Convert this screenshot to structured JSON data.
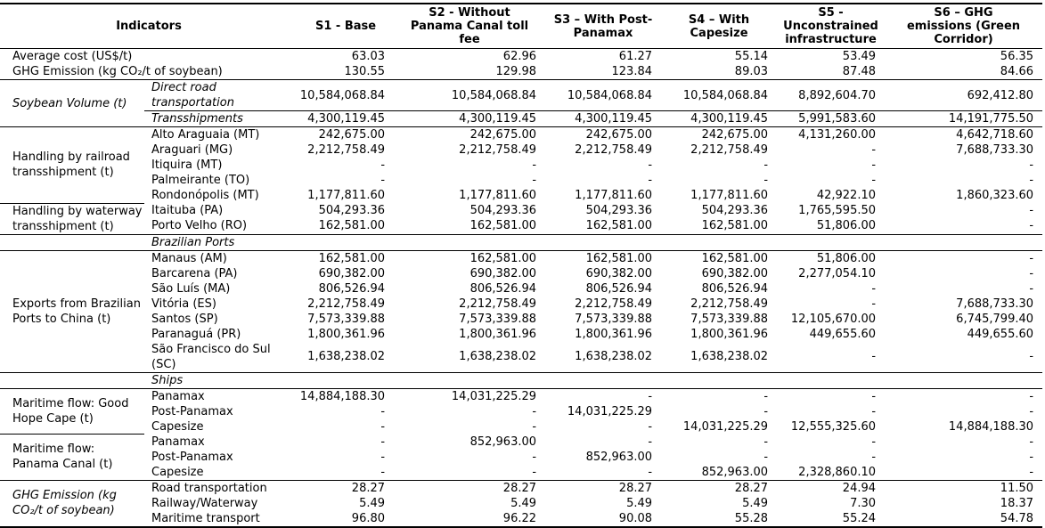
{
  "header": {
    "indicators_label": "Indicators",
    "scenarios": [
      "S1 - Base",
      "S2 - Without Panama Canal toll fee",
      "S3 – With Post-Panamax",
      "S4 – With Capesize",
      "S5 - Unconstrained infrastructure",
      "S6 – GHG emissions (Green Corridor)"
    ]
  },
  "sections": [
    {
      "rows": [
        {
          "label": "Average cost (US$/t)",
          "values": [
            "63.03",
            "62.96",
            "61.27",
            "55.14",
            "53.49",
            "56.35"
          ]
        },
        {
          "label": "GHG Emission (kg CO₂/t of soybean)",
          "values": [
            "130.55",
            "129.98",
            "123.84",
            "89.03",
            "87.48",
            "84.66"
          ]
        }
      ]
    },
    {
      "group_label": "Soybean Volume (t)",
      "rows": [
        {
          "label": "Direct road transportation",
          "values": [
            "10,584,068.84",
            "10,584,068.84",
            "10,584,068.84",
            "10,584,068.84",
            "8,892,604.70",
            "692,412.80"
          ]
        },
        {
          "label": "Transshipments",
          "values": [
            "4,300,119.45",
            "4,300,119.45",
            "4,300,119.45",
            "4,300,119.45",
            "5,991,583.60",
            "14,191,775.50"
          ]
        }
      ]
    },
    {
      "group_label": "Handling by railroad transshipment (t)",
      "rows": [
        {
          "label": "Alto Araguaia (MT)",
          "values": [
            "242,675.00",
            "242,675.00",
            "242,675.00",
            "242,675.00",
            "4,131,260.00",
            "4,642,718.60"
          ]
        },
        {
          "label": "Araguari (MG)",
          "values": [
            "2,212,758.49",
            "2,212,758.49",
            "2,212,758.49",
            "2,212,758.49",
            "-",
            "7,688,733.30"
          ]
        },
        {
          "label": "Itiquira (MT)",
          "values": [
            "-",
            "-",
            "-",
            "-",
            "-",
            "-"
          ]
        },
        {
          "label": "Palmeirante (TO)",
          "values": [
            "-",
            "-",
            "-",
            "-",
            "-",
            "-"
          ]
        },
        {
          "label": "Rondonópolis (MT)",
          "values": [
            "1,177,811.60",
            "1,177,811.60",
            "1,177,811.60",
            "1,177,811.60",
            "42,922.10",
            "1,860,323.60"
          ]
        }
      ]
    },
    {
      "group_label": "Handling by waterway transshipment (t)",
      "rows": [
        {
          "label": "Itaituba (PA)",
          "values": [
            "504,293.36",
            "504,293.36",
            "504,293.36",
            "504,293.36",
            "1,765,595.50",
            "-"
          ]
        },
        {
          "label": "Porto Velho (RO)",
          "values": [
            "162,581.00",
            "162,581.00",
            "162,581.00",
            "162,581.00",
            "51,806.00",
            "-"
          ]
        }
      ]
    },
    {
      "subheader": "Brazilian Ports"
    },
    {
      "group_label": "Exports from Brazilian Ports to China (t)",
      "rows": [
        {
          "label": "Manaus (AM)",
          "values": [
            "162,581.00",
            "162,581.00",
            "162,581.00",
            "162,581.00",
            "51,806.00",
            "-"
          ]
        },
        {
          "label": "Barcarena (PA)",
          "values": [
            "690,382.00",
            "690,382.00",
            "690,382.00",
            "690,382.00",
            "2,277,054.10",
            "-"
          ]
        },
        {
          "label": "São Luís (MA)",
          "values": [
            "806,526.94",
            "806,526.94",
            "806,526.94",
            "806,526.94",
            "-",
            "-"
          ]
        },
        {
          "label": "Vitória (ES)",
          "values": [
            "2,212,758.49",
            "2,212,758.49",
            "2,212,758.49",
            "2,212,758.49",
            "-",
            "7,688,733.30"
          ]
        },
        {
          "label": "Santos (SP)",
          "values": [
            "7,573,339.88",
            "7,573,339.88",
            "7,573,339.88",
            "7,573,339.88",
            "12,105,670.00",
            "6,745,799.40"
          ]
        },
        {
          "label": "Paranaguá (PR)",
          "values": [
            "1,800,361.96",
            "1,800,361.96",
            "1,800,361.96",
            "1,800,361.96",
            "449,655.60",
            "449,655.60"
          ]
        },
        {
          "label": "São Francisco do Sul (SC)",
          "values": [
            "1,638,238.02",
            "1,638,238.02",
            "1,638,238.02",
            "1,638,238.02",
            "-",
            "-"
          ]
        }
      ]
    },
    {
      "subheader": "Ships"
    },
    {
      "group_label": "Maritime flow: Good Hope Cape (t)",
      "rows": [
        {
          "label": "Panamax",
          "values": [
            "14,884,188.30",
            "14,031,225.29",
            "-",
            "-",
            "-",
            "-"
          ]
        },
        {
          "label": "Post-Panamax",
          "values": [
            "-",
            "-",
            "14,031,225.29",
            "-",
            "-",
            "-"
          ]
        },
        {
          "label": "Capesize",
          "values": [
            "-",
            "-",
            "-",
            "14,031,225.29",
            "12,555,325.60",
            "14,884,188.30"
          ]
        }
      ]
    },
    {
      "group_label": "Maritime flow: Panama Canal (t)",
      "rows": [
        {
          "label": "Panamax",
          "values": [
            "-",
            "852,963.00",
            "-",
            "-",
            "-",
            "-"
          ]
        },
        {
          "label": "Post-Panamax",
          "values": [
            "-",
            "-",
            "852,963.00",
            "-",
            "-",
            "-"
          ]
        },
        {
          "label": "Capesize",
          "values": [
            "-",
            "-",
            "-",
            "852,963.00",
            "2,328,860.10",
            "-"
          ]
        }
      ]
    },
    {
      "group_label": "GHG Emission (kg CO₂/t of soybean)",
      "rows": [
        {
          "label": "Road transportation",
          "values": [
            "28.27",
            "28.27",
            "28.27",
            "28.27",
            "24.94",
            "11.50"
          ]
        },
        {
          "label": "Railway/Waterway",
          "values": [
            "5.49",
            "5.49",
            "5.49",
            "5.49",
            "7.30",
            "18.37"
          ]
        },
        {
          "label": "Maritime transport",
          "values": [
            "96.80",
            "96.22",
            "90.08",
            "55.28",
            "55.24",
            "54.78"
          ]
        }
      ]
    }
  ]
}
